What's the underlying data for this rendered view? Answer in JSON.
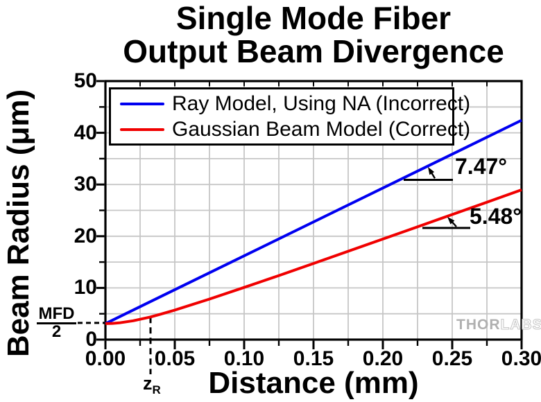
{
  "title": {
    "line1": "Single Mode Fiber",
    "line2": "Output Beam Divergence"
  },
  "chart_data": {
    "type": "line",
    "title": "Single Mode Fiber Output Beam Divergence",
    "xlabel": "Distance (mm)",
    "ylabel": "Beam Radius (μm)",
    "xlim": [
      0,
      0.3
    ],
    "ylim": [
      0,
      50
    ],
    "x_ticks": {
      "values": [
        0,
        0.05,
        0.1,
        0.15,
        0.2,
        0.25,
        0.3
      ],
      "labels": [
        "0.00",
        "0.05",
        "0.10",
        "0.15",
        "0.20",
        "0.25",
        "0.30"
      ],
      "minor_step": 0.025
    },
    "y_ticks": {
      "values": [
        0,
        10,
        20,
        30,
        40,
        50
      ],
      "labels": [
        "0",
        "10",
        "20",
        "30",
        "40",
        "50"
      ],
      "minor_step": 5
    },
    "grid": {
      "on": true,
      "color": "#c6c6c6",
      "x_spacing": 0.025,
      "y_spacing": 5
    },
    "frame_color": "#000000",
    "legend": {
      "position": "top-left",
      "items": [
        {
          "label": "Ray Model, Using NA (Incorrect)",
          "color": "#0000f0"
        },
        {
          "label": "Gaussian Beam Model (Correct)",
          "color": "#f00000"
        }
      ]
    },
    "series": [
      {
        "name": "Ray Model, Using NA (Incorrect)",
        "color": "#0000f0",
        "x": [
          0,
          0.3
        ],
        "y": [
          3.1,
          42.43
        ]
      },
      {
        "name": "Gaussian Beam Model (Correct)",
        "color": "#f00000",
        "x": [
          0,
          0.005,
          0.01,
          0.02,
          0.03,
          0.0325,
          0.04,
          0.05,
          0.075,
          0.1,
          0.125,
          0.15,
          0.175,
          0.2,
          0.225,
          0.25,
          0.275,
          0.3
        ],
        "y": [
          3.1,
          3.14,
          3.25,
          3.65,
          4.23,
          4.38,
          4.93,
          5.71,
          7.84,
          10.09,
          12.39,
          14.73,
          17.09,
          19.45,
          21.82,
          24.2,
          26.58,
          28.97
        ]
      }
    ],
    "mode_field_radius_um": 3.1,
    "rayleigh_range_mm": 0.0325,
    "annotations": {
      "blue_angle": {
        "text": "7.47°",
        "line_z": [
          0.215,
          0.2505
        ],
        "line_w": 30.9,
        "arrow_tail": [
          0.2375,
          31.2
        ],
        "arrow_head": [
          0.2325,
          33.4
        ]
      },
      "red_angle": {
        "text": "5.48°",
        "line_z": [
          0.2285,
          0.263
        ],
        "line_w": 21.6,
        "arrow_tail": [
          0.253,
          21.85
        ],
        "arrow_head": [
          0.2465,
          23.75
        ]
      },
      "mfd": {
        "numerator": "MFD",
        "denominator": "2"
      },
      "rayleigh": {
        "main": "z",
        "sub": "R"
      },
      "watermark": {
        "part1": "THOR",
        "part2": "LABS"
      }
    }
  }
}
